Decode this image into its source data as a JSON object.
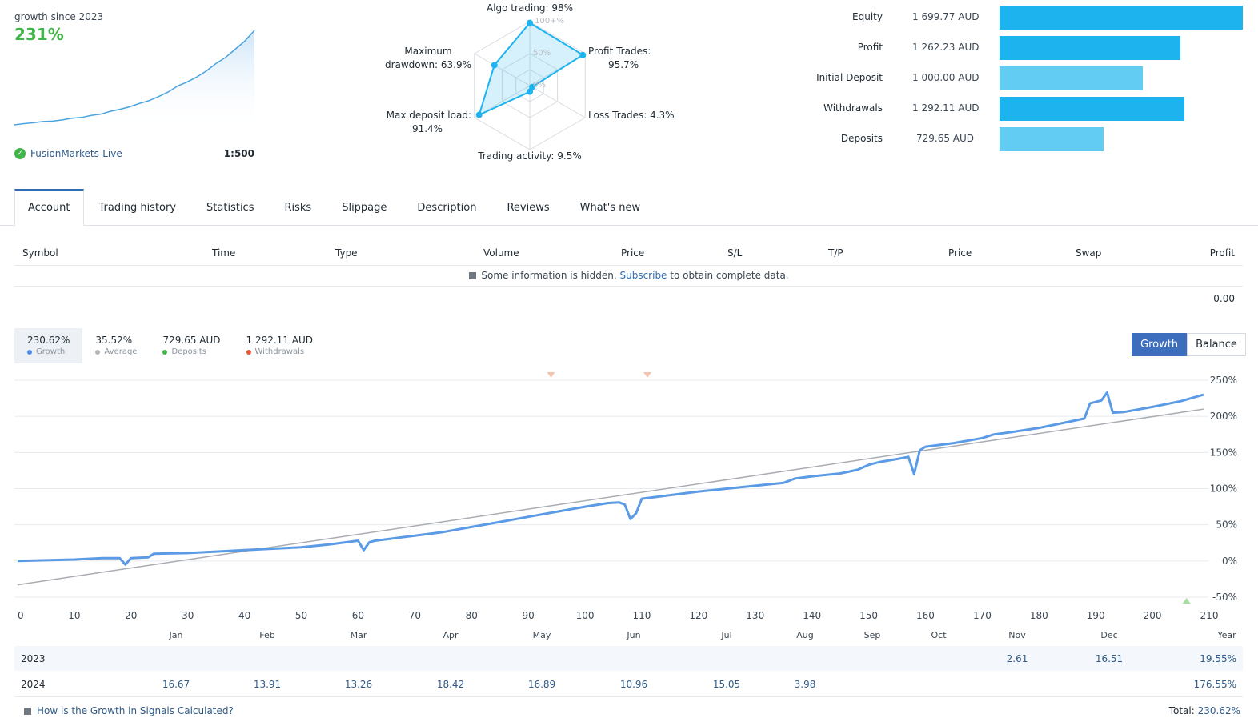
{
  "summary": {
    "growth_label": "growth since 2023",
    "growth_value": "231%",
    "broker": "FusionMarkets-Live",
    "leverage": "1:500",
    "mini_chart": [
      0,
      3,
      5,
      8,
      9,
      12,
      16,
      18,
      23,
      26,
      33,
      38,
      44,
      52,
      59,
      69,
      80,
      95,
      105,
      117,
      132,
      150,
      165,
      185,
      205,
      231
    ]
  },
  "radar": {
    "labels": {
      "algo": "Algo trading: 98%",
      "profit_1": "Profit Trades:",
      "profit_2": "95.7%",
      "loss": "Loss Trades: 4.3%",
      "activity": "Trading activity: 9.5%",
      "load_1": "Max deposit load:",
      "load_2": "91.4%",
      "dd_1": "Maximum",
      "dd_2": "drawdown: 63.9%"
    },
    "ticks": [
      "100+%",
      "50%",
      "0%"
    ],
    "values": {
      "algo": 98,
      "profit": 95.7,
      "loss": 4.3,
      "activity": 9.5,
      "load": 91.4,
      "drawdown": 63.9
    }
  },
  "stats": [
    {
      "label": "Equity",
      "value": "1 699.77 AUD",
      "fraction": 1.0,
      "color": "#1cb3ef"
    },
    {
      "label": "Profit",
      "value": "1 262.23 AUD",
      "fraction": 0.742,
      "color": "#1cb3ef"
    },
    {
      "label": "Initial Deposit",
      "value": "1 000.00 AUD",
      "fraction": 0.588,
      "color": "#62ccf3"
    },
    {
      "label": "Withdrawals",
      "value": "1 292.11 AUD",
      "fraction": 0.76,
      "color": "#1cb3ef"
    },
    {
      "label": "Deposits",
      "value": "729.65 AUD",
      "fraction": 0.429,
      "color": "#62ccf3"
    }
  ],
  "tabs": [
    "Account",
    "Trading history",
    "Statistics",
    "Risks",
    "Slippage",
    "Description",
    "Reviews",
    "What's new"
  ],
  "positions_table": {
    "headers": [
      "Symbol",
      "Time",
      "Type",
      "Volume",
      "Price",
      "S/L",
      "T/P",
      "Price",
      "Swap",
      "Profit"
    ],
    "hidden_note_pre": "Some information is hidden.",
    "hidden_note_link": "Subscribe",
    "hidden_note_post": "to obtain complete data.",
    "profit_total": "0.00"
  },
  "legend": [
    {
      "value": "230.62%",
      "label": "Growth",
      "color": "#4a90e2"
    },
    {
      "value": "35.52%",
      "label": "Average",
      "color": "#b0b5ba"
    },
    {
      "value": "729.65 AUD",
      "label": "Deposits",
      "color": "#41b54a"
    },
    {
      "value": "1 292.11 AUD",
      "label": "Withdrawals",
      "color": "#e8573a"
    }
  ],
  "toggle": {
    "growth": "Growth",
    "balance": "Balance"
  },
  "chart_data": {
    "type": "line",
    "x_ticks": [
      "0",
      "10",
      "20",
      "30",
      "40",
      "50",
      "60",
      "70",
      "80",
      "90",
      "100",
      "110",
      "120",
      "130",
      "140",
      "150",
      "160",
      "170",
      "180",
      "190",
      "200",
      "210"
    ],
    "y_ticks": [
      "250%",
      "200%",
      "150%",
      "100%",
      "50%",
      "0%",
      "-50%"
    ],
    "xlim": [
      0,
      210
    ],
    "ylim": [
      -50,
      250
    ],
    "series": [
      {
        "name": "Growth",
        "color": "#5b9be6",
        "x": [
          0,
          5,
          10,
          15,
          18,
          19,
          20,
          23,
          24,
          30,
          35,
          40,
          45,
          50,
          55,
          60,
          61,
          62,
          63,
          65,
          70,
          75,
          80,
          85,
          90,
          95,
          100,
          104,
          106,
          107,
          108,
          109,
          110,
          115,
          120,
          125,
          130,
          135,
          137,
          140,
          145,
          148,
          150,
          152,
          155,
          157,
          158,
          159,
          160,
          165,
          170,
          172,
          175,
          180,
          185,
          188,
          189,
          191,
          192,
          193,
          195,
          200,
          205,
          209
        ],
        "y": [
          0,
          1,
          2,
          4,
          4,
          -5,
          4,
          5,
          10,
          11,
          13,
          15,
          17,
          19,
          23,
          28,
          15,
          26,
          28,
          30,
          35,
          40,
          47,
          54,
          61,
          68,
          75,
          80,
          81,
          78,
          58,
          66,
          86,
          91,
          96,
          100,
          104,
          108,
          114,
          117,
          121,
          126,
          133,
          137,
          141,
          144,
          120,
          153,
          158,
          163,
          170,
          175,
          178,
          184,
          192,
          197,
          218,
          222,
          233,
          205,
          206,
          213,
          221,
          230
        ]
      },
      {
        "name": "Average",
        "color": "#a9adb2",
        "x": [
          0,
          209
        ],
        "y": [
          -33,
          210
        ]
      }
    ],
    "markers": {
      "withdrawal_x": [
        94,
        111
      ],
      "deposit_x": [
        206
      ]
    }
  },
  "monthly": {
    "months": [
      "Jan",
      "Feb",
      "Mar",
      "Apr",
      "May",
      "Jun",
      "Jul",
      "Aug",
      "Sep",
      "Oct",
      "Nov",
      "Dec"
    ],
    "year_label": "Year",
    "rows": [
      {
        "year": "2023",
        "values": [
          "",
          "",
          "",
          "",
          "",
          "",
          "",
          "",
          "",
          "",
          "2.61",
          "16.51"
        ],
        "total": "19.55%"
      },
      {
        "year": "2024",
        "values": [
          "16.67",
          "13.91",
          "13.26",
          "18.42",
          "16.89",
          "10.96",
          "15.05",
          "3.98",
          "",
          "",
          "",
          ""
        ],
        "total": "176.55%"
      }
    ]
  },
  "footer": {
    "link": "How is the Growth in Signals Calculated?",
    "total_label": "Total:",
    "total_value": "230.62%"
  }
}
